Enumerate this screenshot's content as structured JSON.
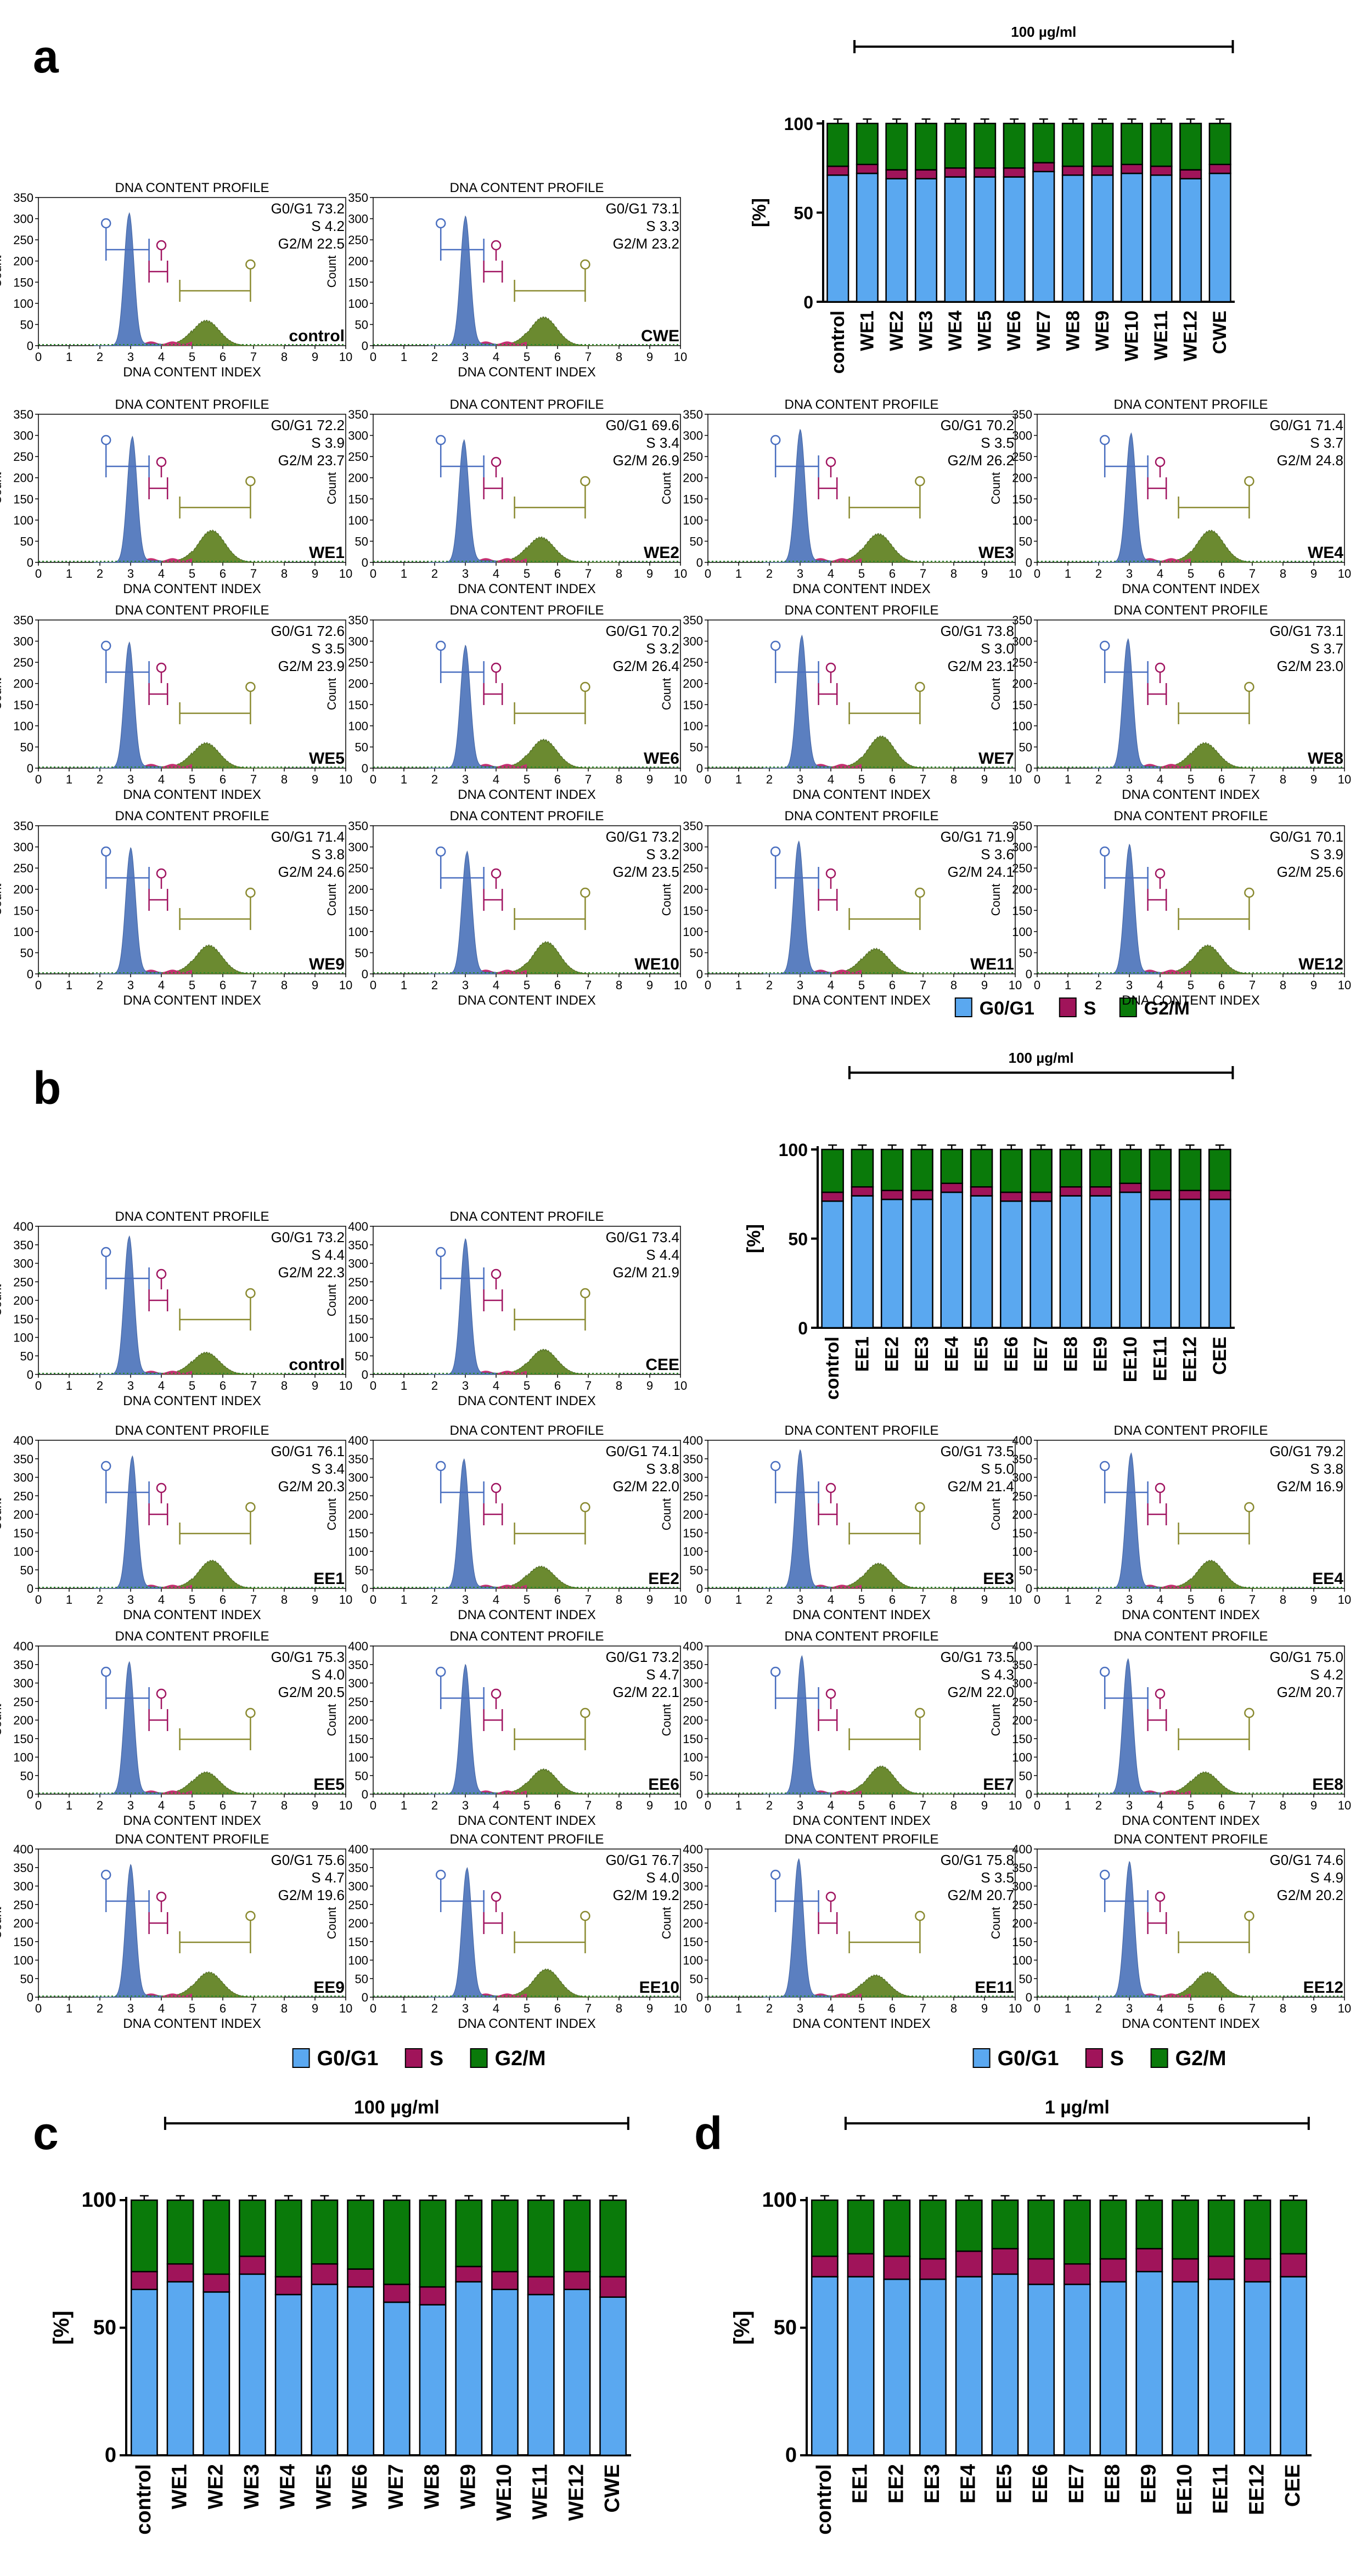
{
  "colors": {
    "g0g1": "#5aa8f0",
    "s": "#a0145a",
    "g2m": "#0a7a0a",
    "hist_g1": "#5b7fc0",
    "hist_s": "#c43070",
    "hist_g2": "#6b8a30"
  },
  "legend": {
    "g0g1": "G0/G1",
    "s": "S",
    "g2m": "G2/M"
  },
  "hist": {
    "title": "DNA CONTENT PROFILE",
    "xlabel": "DNA CONTENT INDEX",
    "ylabel": "Count",
    "xticks": [
      "0",
      "1",
      "2",
      "3",
      "4",
      "5",
      "6",
      "7",
      "8",
      "9",
      "10"
    ]
  },
  "panel_labels": {
    "a": "a",
    "b": "b",
    "c": "c",
    "d": "d"
  },
  "stat_labels": {
    "g0g1": "G0/G1",
    "s": "S",
    "g2m": "G2/M"
  },
  "chart_data": [
    {
      "type": "bar",
      "panel": "a",
      "stacked": true,
      "bracket_label": "100 µg/ml",
      "ylabel": "[%]",
      "ylim": [
        0,
        100
      ],
      "yticks": [
        0,
        50,
        100
      ],
      "categories": [
        "control",
        "WE1",
        "WE2",
        "WE3",
        "WE4",
        "WE5",
        "WE6",
        "WE7",
        "WE8",
        "WE9",
        "WE10",
        "WE11",
        "WE12",
        "CWE"
      ],
      "series": [
        {
          "name": "G0/G1",
          "values": [
            71,
            72,
            69,
            69,
            70,
            70,
            70,
            73,
            71,
            71,
            72,
            71,
            69,
            72
          ]
        },
        {
          "name": "S",
          "values": [
            5,
            5,
            5,
            5,
            5,
            5,
            5,
            5,
            5,
            5,
            5,
            5,
            5,
            5
          ]
        },
        {
          "name": "G2/M",
          "values": [
            24,
            23,
            26,
            26,
            25,
            25,
            25,
            22,
            24,
            24,
            23,
            24,
            26,
            23
          ]
        }
      ]
    },
    {
      "type": "bar",
      "panel": "b",
      "stacked": true,
      "bracket_label": "100 µg/ml",
      "ylabel": "[%]",
      "ylim": [
        0,
        100
      ],
      "yticks": [
        0,
        50,
        100
      ],
      "categories": [
        "control",
        "EE1",
        "EE2",
        "EE3",
        "EE4",
        "EE5",
        "EE6",
        "EE7",
        "EE8",
        "EE9",
        "EE10",
        "EE11",
        "EE12",
        "CEE"
      ],
      "series": [
        {
          "name": "G0/G1",
          "values": [
            71,
            74,
            72,
            72,
            76,
            74,
            71,
            71,
            74,
            74,
            76,
            72,
            72,
            72
          ]
        },
        {
          "name": "S",
          "values": [
            5,
            5,
            5,
            5,
            5,
            5,
            5,
            5,
            5,
            5,
            5,
            5,
            5,
            5
          ]
        },
        {
          "name": "G2/M",
          "values": [
            24,
            21,
            23,
            23,
            19,
            21,
            24,
            24,
            21,
            21,
            19,
            23,
            23,
            23
          ]
        }
      ]
    },
    {
      "type": "bar",
      "panel": "c",
      "stacked": true,
      "bracket_label": "100 µg/ml",
      "ylabel": "[%]",
      "ylim": [
        0,
        100
      ],
      "yticks": [
        0,
        50,
        100
      ],
      "categories": [
        "control",
        "WE1",
        "WE2",
        "WE3",
        "WE4",
        "WE5",
        "WE6",
        "WE7",
        "WE8",
        "WE9",
        "WE10",
        "WE11",
        "WE12",
        "CWE"
      ],
      "series": [
        {
          "name": "G0/G1",
          "values": [
            65,
            68,
            64,
            71,
            63,
            67,
            66,
            60,
            59,
            68,
            65,
            63,
            65,
            62
          ]
        },
        {
          "name": "S",
          "values": [
            7,
            7,
            7,
            7,
            7,
            8,
            7,
            7,
            7,
            6,
            7,
            7,
            7,
            8
          ]
        },
        {
          "name": "G2/M",
          "values": [
            28,
            25,
            29,
            22,
            30,
            25,
            27,
            33,
            34,
            26,
            28,
            30,
            28,
            30
          ]
        }
      ]
    },
    {
      "type": "bar",
      "panel": "d",
      "stacked": true,
      "bracket_label": "1 µg/ml",
      "ylabel": "[%]",
      "ylim": [
        0,
        100
      ],
      "yticks": [
        0,
        50,
        100
      ],
      "categories": [
        "control",
        "EE1",
        "EE2",
        "EE3",
        "EE4",
        "EE5",
        "EE6",
        "EE7",
        "EE8",
        "EE9",
        "EE10",
        "EE11",
        "EE12",
        "CEE"
      ],
      "series": [
        {
          "name": "G0/G1",
          "values": [
            70,
            70,
            69,
            69,
            70,
            71,
            67,
            67,
            68,
            72,
            68,
            69,
            68,
            70
          ]
        },
        {
          "name": "S",
          "values": [
            8,
            9,
            9,
            8,
            10,
            10,
            10,
            8,
            9,
            9,
            9,
            9,
            9,
            9
          ]
        },
        {
          "name": "G2/M",
          "values": [
            22,
            21,
            22,
            23,
            20,
            19,
            23,
            25,
            23,
            19,
            23,
            22,
            23,
            21
          ]
        }
      ]
    }
  ],
  "histograms": [
    {
      "panel": "a",
      "sample": "control",
      "g0g1": "73.2",
      "s": "4.2",
      "g2m": "22.5"
    },
    {
      "panel": "a",
      "sample": "CWE",
      "g0g1": "73.1",
      "s": "3.3",
      "g2m": "23.2"
    },
    {
      "panel": "a",
      "sample": "WE1",
      "g0g1": "72.2",
      "s": "3.9",
      "g2m": "23.7"
    },
    {
      "panel": "a",
      "sample": "WE2",
      "g0g1": "69.6",
      "s": "3.4",
      "g2m": "26.9"
    },
    {
      "panel": "a",
      "sample": "WE3",
      "g0g1": "70.2",
      "s": "3.5",
      "g2m": "26.2"
    },
    {
      "panel": "a",
      "sample": "WE4",
      "g0g1": "71.4",
      "s": "3.7",
      "g2m": "24.8"
    },
    {
      "panel": "a",
      "sample": "WE5",
      "g0g1": "72.6",
      "s": "3.5",
      "g2m": "23.9"
    },
    {
      "panel": "a",
      "sample": "WE6",
      "g0g1": "70.2",
      "s": "3.2",
      "g2m": "26.4"
    },
    {
      "panel": "a",
      "sample": "WE7",
      "g0g1": "73.8",
      "s": "3.0",
      "g2m": "23.1"
    },
    {
      "panel": "a",
      "sample": "WE8",
      "g0g1": "73.1",
      "s": "3.7",
      "g2m": "23.0"
    },
    {
      "panel": "a",
      "sample": "WE9",
      "g0g1": "71.4",
      "s": "3.8",
      "g2m": "24.6"
    },
    {
      "panel": "a",
      "sample": "WE10",
      "g0g1": "73.2",
      "s": "3.2",
      "g2m": "23.5"
    },
    {
      "panel": "a",
      "sample": "WE11",
      "g0g1": "71.9",
      "s": "3.6",
      "g2m": "24.1"
    },
    {
      "panel": "a",
      "sample": "WE12",
      "g0g1": "70.1",
      "s": "3.9",
      "g2m": "25.6"
    },
    {
      "panel": "b",
      "sample": "control",
      "g0g1": "73.2",
      "s": "4.4",
      "g2m": "22.3"
    },
    {
      "panel": "b",
      "sample": "CEE",
      "g0g1": "73.4",
      "s": "4.4",
      "g2m": "21.9"
    },
    {
      "panel": "b",
      "sample": "EE1",
      "g0g1": "76.1",
      "s": "3.4",
      "g2m": "20.3"
    },
    {
      "panel": "b",
      "sample": "EE2",
      "g0g1": "74.1",
      "s": "3.8",
      "g2m": "22.0"
    },
    {
      "panel": "b",
      "sample": "EE3",
      "g0g1": "73.5",
      "s": "5.0",
      "g2m": "21.4"
    },
    {
      "panel": "b",
      "sample": "EE4",
      "g0g1": "79.2",
      "s": "3.8",
      "g2m": "16.9"
    },
    {
      "panel": "b",
      "sample": "EE5",
      "g0g1": "75.3",
      "s": "4.0",
      "g2m": "20.5"
    },
    {
      "panel": "b",
      "sample": "EE6",
      "g0g1": "73.2",
      "s": "4.7",
      "g2m": "22.1"
    },
    {
      "panel": "b",
      "sample": "EE7",
      "g0g1": "73.5",
      "s": "4.3",
      "g2m": "22.0"
    },
    {
      "panel": "b",
      "sample": "EE8",
      "g0g1": "75.0",
      "s": "4.2",
      "g2m": "20.7"
    },
    {
      "panel": "b",
      "sample": "EE9",
      "g0g1": "75.6",
      "s": "4.7",
      "g2m": "19.6"
    },
    {
      "panel": "b",
      "sample": "EE10",
      "g0g1": "76.7",
      "s": "4.0",
      "g2m": "19.2"
    },
    {
      "panel": "b",
      "sample": "EE11",
      "g0g1": "75.8",
      "s": "3.5",
      "g2m": "20.7"
    },
    {
      "panel": "b",
      "sample": "EE12",
      "g0g1": "74.6",
      "s": "4.9",
      "g2m": "20.2"
    }
  ],
  "hist_axes": {
    "a": {
      "ymax": 350,
      "yticks": [
        "0",
        "50",
        "100",
        "150",
        "200",
        "250",
        "300",
        "350"
      ]
    },
    "b": {
      "ymax": 400,
      "yticks": [
        "0",
        "50",
        "100",
        "150",
        "200",
        "250",
        "300",
        "350",
        "400"
      ]
    }
  }
}
